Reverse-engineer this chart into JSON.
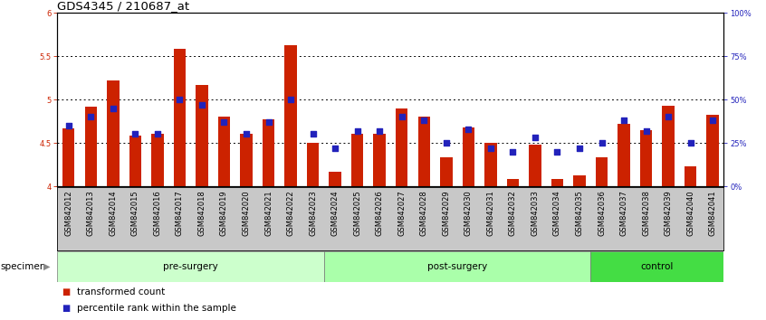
{
  "title": "GDS4345 / 210687_at",
  "categories": [
    "GSM842012",
    "GSM842013",
    "GSM842014",
    "GSM842015",
    "GSM842016",
    "GSM842017",
    "GSM842018",
    "GSM842019",
    "GSM842020",
    "GSM842021",
    "GSM842022",
    "GSM842023",
    "GSM842024",
    "GSM842025",
    "GSM842026",
    "GSM842027",
    "GSM842028",
    "GSM842029",
    "GSM842030",
    "GSM842031",
    "GSM842032",
    "GSM842033",
    "GSM842034",
    "GSM842035",
    "GSM842036",
    "GSM842037",
    "GSM842038",
    "GSM842039",
    "GSM842040",
    "GSM842041"
  ],
  "bar_values": [
    4.67,
    4.92,
    5.22,
    4.58,
    4.6,
    5.58,
    5.17,
    4.8,
    4.6,
    4.77,
    5.63,
    4.5,
    4.17,
    4.6,
    4.6,
    4.9,
    4.8,
    4.33,
    4.68,
    4.5,
    4.08,
    4.48,
    4.08,
    4.13,
    4.33,
    4.72,
    4.65,
    4.93,
    4.23,
    4.82
  ],
  "dot_values_pct": [
    35,
    40,
    45,
    30,
    30,
    50,
    47,
    37,
    30,
    37,
    50,
    30,
    22,
    32,
    32,
    40,
    38,
    25,
    33,
    22,
    20,
    28,
    20,
    22,
    25,
    38,
    32,
    40,
    25,
    38
  ],
  "ylim_left": [
    4.0,
    6.0
  ],
  "ylim_right": [
    0,
    100
  ],
  "yticks_left": [
    4.0,
    4.5,
    5.0,
    5.5,
    6.0
  ],
  "yticks_right": [
    0,
    25,
    50,
    75,
    100
  ],
  "ytick_labels_left": [
    "4",
    "4.5",
    "5",
    "5.5",
    "6"
  ],
  "ytick_labels_right": [
    "0%",
    "25%",
    "50%",
    "75%",
    "100%"
  ],
  "bar_color": "#cc2200",
  "dot_color": "#2222bb",
  "bar_width": 0.55,
  "group_labels": [
    "pre-surgery",
    "post-surgery",
    "control"
  ],
  "group_ranges": [
    [
      0,
      11
    ],
    [
      12,
      23
    ],
    [
      24,
      29
    ]
  ],
  "group_colors": [
    "#ccffcc",
    "#aaffaa",
    "#44dd44"
  ],
  "specimen_label": "specimen",
  "legend_items": [
    "transformed count",
    "percentile rank within the sample"
  ],
  "legend_colors": [
    "#cc2200",
    "#2222bb"
  ],
  "bg_color": "#ffffff",
  "xtick_bg": "#c8c8c8",
  "title_fontsize": 9.5,
  "tick_fontsize": 6.0,
  "label_fontsize": 7.5,
  "base": 4.0
}
